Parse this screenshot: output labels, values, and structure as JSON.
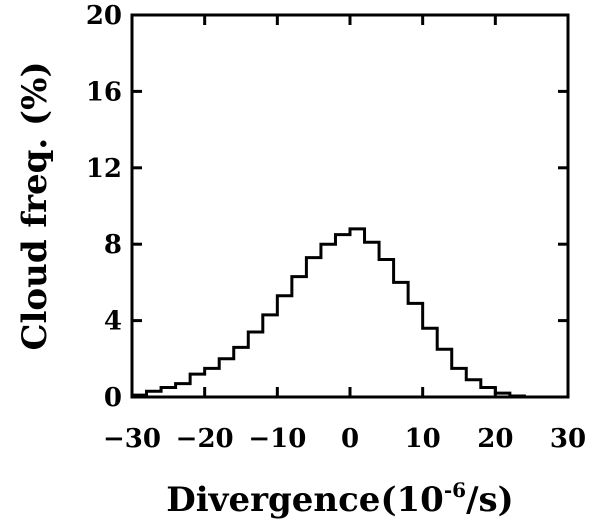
{
  "chart_data": {
    "type": "bar",
    "style": "step-histogram",
    "title": "",
    "xlabel": {
      "main": "Divergence(10",
      "exponent": "-6",
      "unit": "/s)"
    },
    "ylabel": "Cloud freq. (%)",
    "xlim": [
      -30,
      30
    ],
    "ylim": [
      0,
      20
    ],
    "xticks": [
      "-30",
      "-20",
      "-10",
      "0",
      "10",
      "20",
      "30"
    ],
    "yticks": [
      "0",
      "4",
      "8",
      "12",
      "16",
      "20"
    ],
    "bin_width": 2,
    "bin_edges": [
      -30,
      -28,
      -26,
      -24,
      -22,
      -20,
      -18,
      -16,
      -14,
      -12,
      -10,
      -8,
      -6,
      -4,
      -2,
      0,
      2,
      4,
      6,
      8,
      10,
      12,
      14,
      16,
      18,
      20,
      22,
      24,
      26,
      28,
      30
    ],
    "values": [
      0.1,
      0.3,
      0.5,
      0.7,
      1.2,
      1.5,
      2.0,
      2.6,
      3.4,
      4.3,
      5.3,
      6.3,
      7.3,
      8.0,
      8.5,
      8.8,
      8.1,
      7.2,
      6.0,
      4.9,
      3.6,
      2.5,
      1.5,
      0.9,
      0.5,
      0.2,
      0.05,
      0.0,
      0.0,
      0.0
    ],
    "grid": false,
    "legend": "none",
    "colors": {
      "line": "#000000",
      "background": "#ffffff"
    }
  }
}
